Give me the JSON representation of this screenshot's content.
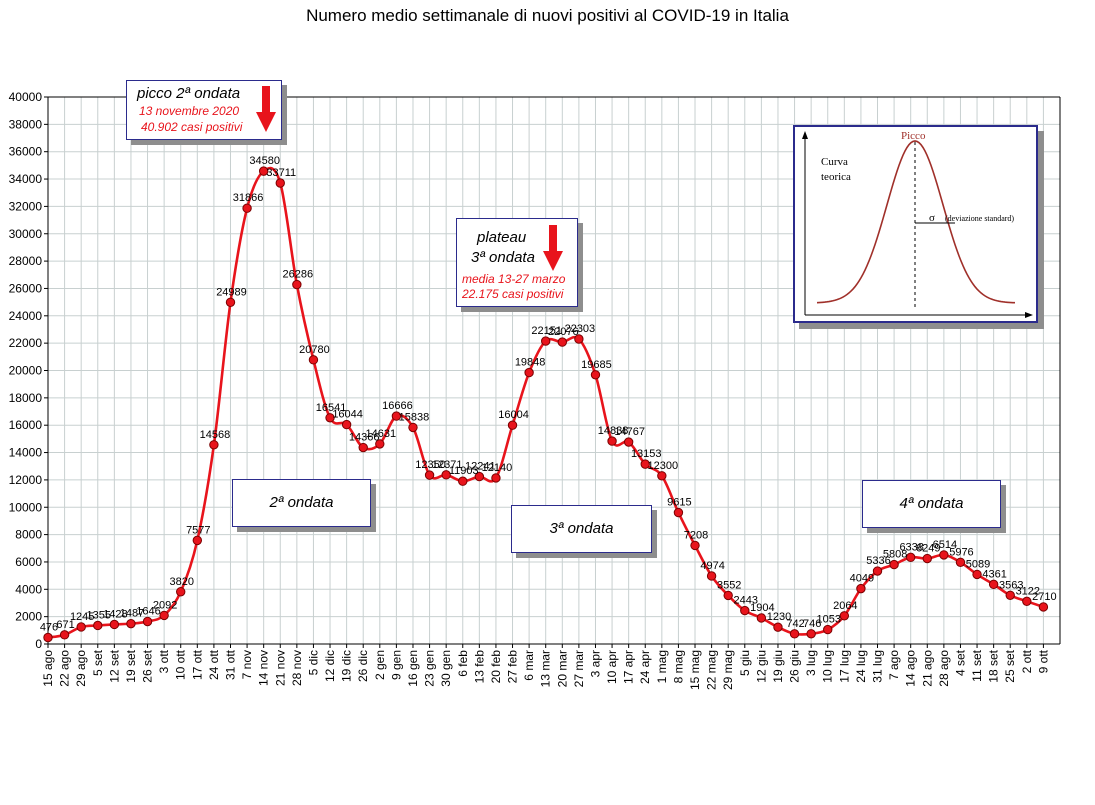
{
  "chart_data": {
    "type": "line",
    "title": "Numero medio settimanale di nuovi positivi al COVID-19 in Italia",
    "xlabel": "",
    "ylabel": "",
    "ylim": [
      0,
      40000
    ],
    "y_ticks": [
      0,
      2000,
      4000,
      6000,
      8000,
      10000,
      12000,
      14000,
      16000,
      18000,
      20000,
      22000,
      24000,
      26000,
      28000,
      30000,
      32000,
      34000,
      36000,
      38000,
      40000
    ],
    "grid": true,
    "line_color": "#e8141c",
    "marker_color": "#e8141c",
    "x": [
      "15 ago",
      "22 ago",
      "29 ago",
      "5 set",
      "12 set",
      "19 set",
      "26 set",
      "3 ott",
      "10 ott",
      "17 ott",
      "24 ott",
      "31 ott",
      "7 nov",
      "14 nov",
      "21 nov",
      "28 nov",
      "5 dic",
      "12 dic",
      "19 dic",
      "26 dic",
      "2 gen",
      "9 gen",
      "16 gen",
      "23 gen",
      "30 gen",
      "6 feb",
      "13 feb",
      "20 feb",
      "27 feb",
      "6 mar",
      "13 mar",
      "20 mar",
      "27 mar",
      "3 apr",
      "10 apr",
      "17 apr",
      "24 apr",
      "1 mag",
      "8 mag",
      "15 mag",
      "22 mag",
      "29 mag",
      "5 giu",
      "12 giu",
      "19 giu",
      "26 giu",
      "3 lug",
      "10 lug",
      "17 lug",
      "24 lug",
      "31 lug",
      "7 ago",
      "14 ago",
      "21 ago",
      "28 ago",
      "4 set",
      "11 set",
      "18 set",
      "25 set",
      "2 ott",
      "9 ott"
    ],
    "series": [
      {
        "values": [
          476,
          671,
          1245,
          1355,
          1428,
          1487,
          1646,
          2092,
          3820,
          7577,
          14568,
          24989,
          31866,
          34580,
          33711,
          26286,
          20780,
          16541,
          16044,
          14366,
          14631,
          16666,
          15838,
          12350,
          12371,
          11903,
          12241,
          12140,
          16004,
          19848,
          22151,
          22076,
          22303,
          19685,
          14838,
          14767,
          13153,
          12300,
          9615,
          7208,
          4974,
          3552,
          2443,
          1904,
          1230,
          742,
          746,
          1053,
          2064,
          4049,
          5336,
          5808,
          6338,
          6249,
          6514,
          5976,
          5089,
          4361,
          3563,
          3122,
          2710
        ],
        "labels": [
          "476",
          "671",
          "1245",
          "1355",
          "1428",
          "1487",
          "1646",
          "2092",
          "3820",
          "7577",
          "14568",
          "24989",
          "31866",
          "34580",
          "33711",
          "26286",
          "20780",
          "16541",
          "16044",
          "14366",
          "14631",
          "16666",
          "15838",
          "12350",
          "12371",
          "11903",
          "12241",
          "12140",
          "16004",
          "19848",
          "22151",
          "22076",
          "22303",
          "19685",
          "14838",
          "14767",
          "13153",
          "12300",
          "9615",
          "7208",
          "4974",
          "3552",
          "2443",
          "1904",
          "1230",
          "742",
          "746",
          "1053",
          "2064",
          "4049",
          "5336",
          "5808",
          "6338",
          "6249",
          "6514",
          "5976",
          "5089",
          "4361",
          "3563",
          "3122",
          "2710"
        ]
      }
    ],
    "annotations": {
      "peak2": {
        "title": "picco 2ª ondata",
        "date": "13 novembre 2020",
        "value": "40.902 casi positivi"
      },
      "plateau3": {
        "title1": "plateau",
        "title2": "3ª ondata",
        "line1": "media 13-27 marzo",
        "line2": "22.175 casi positivi"
      },
      "wave2": "2ª ondata",
      "wave3": "3ª ondata",
      "wave4": "4ª ondata"
    },
    "inset": {
      "peak_label": "Picco",
      "curve_label_1": "Curva",
      "curve_label_2": "teorica",
      "sigma_label": "σ",
      "sigma_desc": "(deviazione standard)",
      "curve_color": "#a0302a"
    }
  }
}
